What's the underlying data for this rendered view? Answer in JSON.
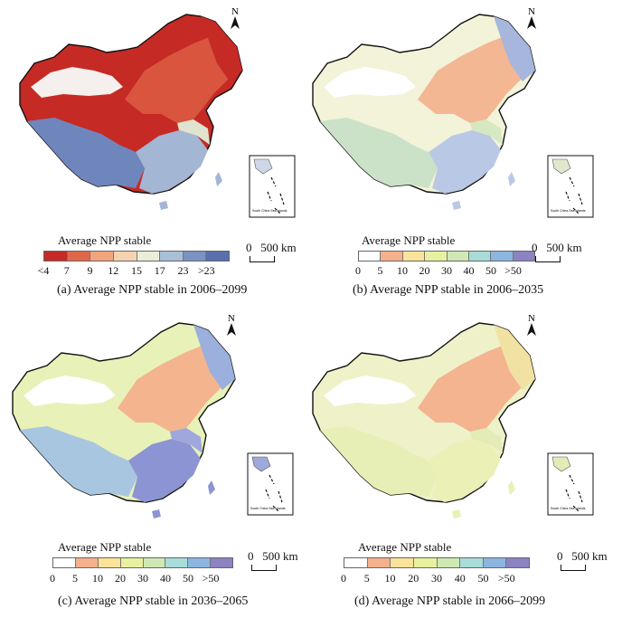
{
  "panels": [
    {
      "legend_title": "Average NPP stable",
      "legend_ticks": [
        "<4",
        "7",
        "9",
        "12",
        "15",
        "17",
        "23",
        ">23"
      ],
      "legend_colors": [
        "#c62a25",
        "#e0684a",
        "#f2a47c",
        "#f6d3b0",
        "#e9eed8",
        "#a9bfd8",
        "#7b93c4",
        "#5a6fae"
      ],
      "scale_text": "0   500 km",
      "caption": "(a) Average NPP stable in 2006–2099",
      "north_label": "N",
      "inset_label": "South China Sea Islands"
    },
    {
      "legend_title": "Average NPP stable",
      "legend_ticks": [
        "0",
        "5",
        "10",
        "20",
        "30",
        "40",
        "50",
        ">50"
      ],
      "legend_colors": [
        "#ffffff",
        "#f5b08c",
        "#fbe49a",
        "#e9f1a0",
        "#cfe9b4",
        "#a8dcd9",
        "#8ab6e0",
        "#8b83c2"
      ],
      "scale_text": "0   500 km",
      "caption": "(b) Average NPP stable in 2006–2035",
      "north_label": "N",
      "inset_label": "South China Sea Islands"
    },
    {
      "legend_title": "Average NPP stable",
      "legend_ticks": [
        "0",
        "5",
        "10",
        "20",
        "30",
        "40",
        "50",
        ">50"
      ],
      "legend_colors": [
        "#ffffff",
        "#f5b08c",
        "#fbe49a",
        "#e9f1a0",
        "#cfe9b4",
        "#a8dcd9",
        "#8ab6e0",
        "#8b83c2"
      ],
      "scale_text": "0   500 km",
      "caption": "(c) Average NPP stable in 2036–2065",
      "north_label": "N",
      "inset_label": "South China Sea Islands"
    },
    {
      "legend_title": "Average NPP stable",
      "legend_ticks": [
        "0",
        "5",
        "10",
        "20",
        "30",
        "40",
        "50",
        ">50"
      ],
      "legend_colors": [
        "#ffffff",
        "#f5b08c",
        "#fbe49a",
        "#e9f1a0",
        "#cfe9b4",
        "#a8dcd9",
        "#8ab6e0",
        "#8b83c2"
      ],
      "scale_text": "0   500 km",
      "caption": "(d) Average NPP stable in 2066–2099",
      "north_label": "N",
      "inset_label": "South China Sea Islands"
    }
  ],
  "map_colors": {
    "a": {
      "west": "#c62a25",
      "northeast": "#c62a25",
      "north": "#d9553e",
      "desert": "#f5f0ee",
      "tibet": "#6f86bd",
      "south": "#a3b6d3",
      "southeast": "#dfe3cf",
      "border": "#111111"
    },
    "b": {
      "west": "#f2f3d8",
      "northeast": "#a6b6dc",
      "north": "#f3b793",
      "desert": "#ffffff",
      "tibet": "#cbe1c8",
      "south": "#b9c8e5",
      "southeast": "#d6e8c2",
      "border": "#111111"
    },
    "c": {
      "west": "#e8f1b8",
      "northeast": "#9bb0dc",
      "north": "#f4b48d",
      "desert": "#ffffff",
      "tibet": "#a9c6e0",
      "south": "#8d94d3",
      "southeast": "#9fa7dc",
      "border": "#111111"
    },
    "d": {
      "west": "#eff1c9",
      "northeast": "#f1e2a3",
      "north": "#f3b48f",
      "desert": "#ffffff",
      "tibet": "#e8efb6",
      "south": "#eaf0b6",
      "southeast": "#e3ecb6",
      "border": "#111111"
    }
  }
}
